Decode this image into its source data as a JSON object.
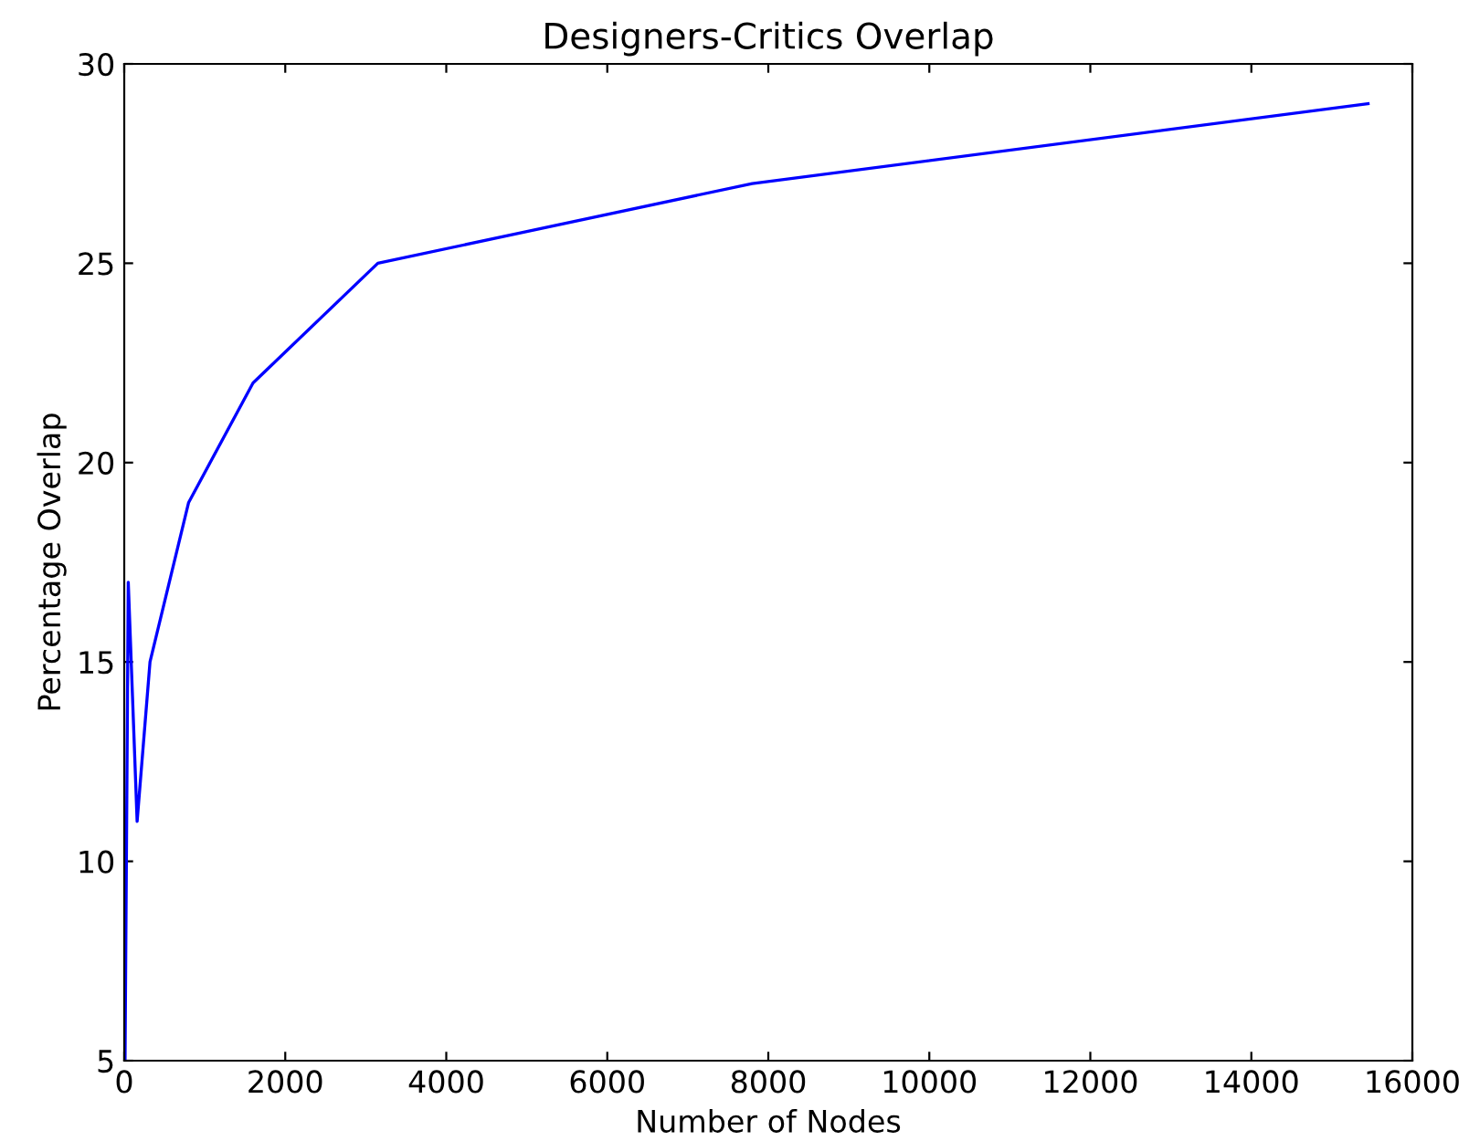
{
  "chart_data": {
    "type": "line",
    "title": "Designers-Critics Overlap",
    "xlabel": "Number of Nodes",
    "ylabel": "Percentage Overlap",
    "x": [
      10,
      50,
      160,
      320,
      800,
      1600,
      3150,
      7800,
      15450
    ],
    "series": [
      {
        "color": "#0000ff",
        "values": [
          5,
          17,
          11,
          15,
          19,
          22,
          25,
          27,
          29
        ]
      }
    ],
    "xlim": [
      0,
      16000
    ],
    "xticks": [
      0,
      2000,
      4000,
      6000,
      8000,
      10000,
      12000,
      14000,
      16000
    ],
    "ylim": [
      5,
      30
    ],
    "yticks": [
      5,
      10,
      15,
      20,
      25,
      30
    ],
    "grid": false,
    "legend": false
  }
}
